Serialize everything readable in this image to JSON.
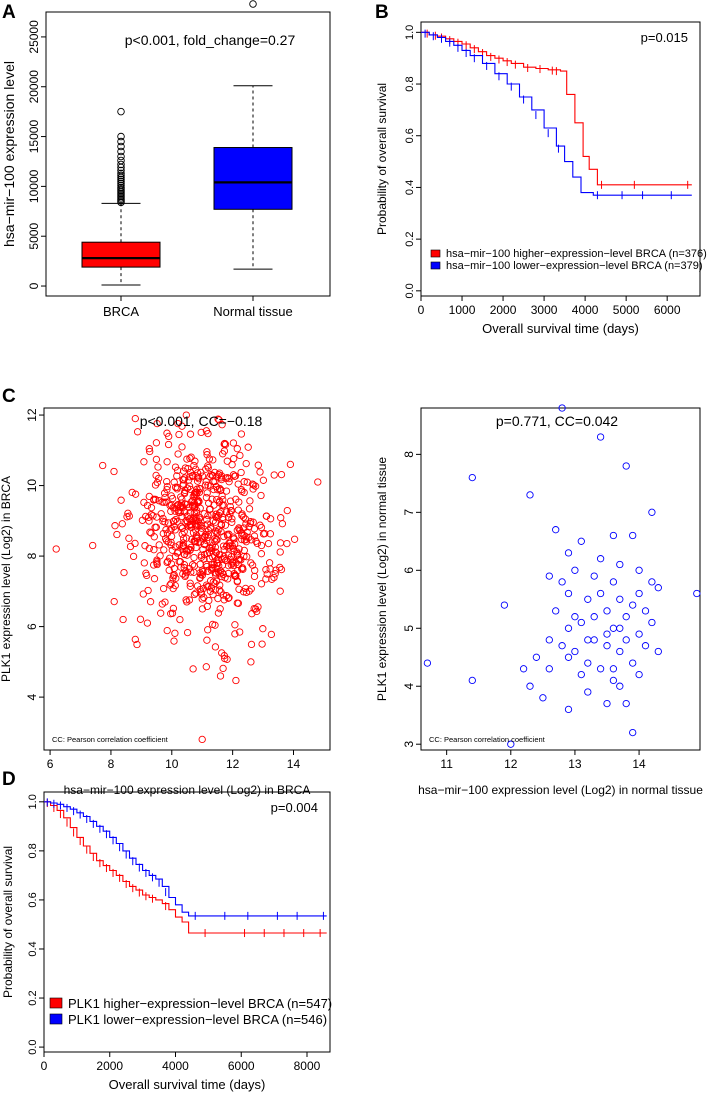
{
  "panels": {
    "A": {
      "letter": "A"
    },
    "B": {
      "letter": "B"
    },
    "C": {
      "letter": "C"
    },
    "D": {
      "letter": "D"
    }
  },
  "chart_data": [
    {
      "id": "A",
      "type": "box",
      "title": "p<0.001, fold_change=0.27",
      "xlabel": "",
      "ylabel": "hsa−mir−100 expression level",
      "categories": [
        "BRCA",
        "Normal tissue"
      ],
      "ylim": [
        -1000,
        27500
      ],
      "yticks": [
        0,
        5000,
        10000,
        15000,
        20000,
        25000
      ],
      "boxes": [
        {
          "name": "BRCA",
          "color": "#ff0000",
          "min": 100,
          "q1": 1900,
          "median": 2800,
          "q3": 4400,
          "whisker_high": 8300,
          "outliers": [
            8400,
            8550,
            8700,
            8850,
            9000,
            9150,
            9300,
            9450,
            9600,
            9750,
            9900,
            10100,
            10300,
            10500,
            10700,
            10900,
            11100,
            11300,
            11600,
            11900,
            12200,
            12600,
            13000,
            13500,
            14000,
            14500,
            15000,
            17500
          ]
        },
        {
          "name": "Normal tissue",
          "color": "#0000ff",
          "min": 1700,
          "q1": 7700,
          "median": 10400,
          "q3": 13900,
          "whisker_high": 20100,
          "outliers": [
            28300
          ]
        }
      ]
    },
    {
      "id": "B",
      "type": "line",
      "subtype": "kaplan-meier",
      "annotation": "p=0.015",
      "xlabel": "Overall survival time (days)",
      "ylabel": "Probability of overall survival",
      "xlim": [
        0,
        6800
      ],
      "ylim": [
        -0.02,
        1.04
      ],
      "xticks": [
        0,
        1000,
        2000,
        3000,
        4000,
        5000,
        6000
      ],
      "yticks": [
        0.0,
        0.2,
        0.4,
        0.6,
        0.8,
        1.0
      ],
      "legend": [
        "hsa−mir−100 higher−expression−level BRCA (n=376)",
        "hsa−mir−100 lower−expression−level BRCA (n=379)"
      ],
      "series": [
        {
          "name": "higher",
          "color": "#ff0000",
          "x": [
            0,
            200,
            400,
            600,
            800,
            1000,
            1200,
            1400,
            1600,
            1800,
            2000,
            2200,
            2500,
            2800,
            3100,
            3400,
            3550,
            3750,
            3950,
            4100,
            4300,
            6600
          ],
          "y": [
            1.0,
            0.99,
            0.985,
            0.975,
            0.965,
            0.955,
            0.94,
            0.925,
            0.91,
            0.9,
            0.89,
            0.88,
            0.865,
            0.86,
            0.855,
            0.85,
            0.76,
            0.65,
            0.52,
            0.47,
            0.41,
            0.41
          ],
          "censor_x": [
            150,
            350,
            500,
            700,
            900,
            1100,
            1300,
            1500,
            1700,
            1900,
            2100,
            2300,
            2600,
            2900,
            3200,
            3300,
            4400,
            5200,
            6500
          ],
          "censor_y": [
            0.995,
            0.987,
            0.98,
            0.97,
            0.96,
            0.95,
            0.935,
            0.92,
            0.905,
            0.895,
            0.885,
            0.875,
            0.862,
            0.858,
            0.852,
            0.85,
            0.41,
            0.41,
            0.41
          ]
        },
        {
          "name": "lower",
          "color": "#0000ff",
          "x": [
            0,
            200,
            400,
            600,
            800,
            1000,
            1200,
            1500,
            1800,
            2100,
            2400,
            2700,
            3000,
            3300,
            3500,
            3700,
            3900,
            4200,
            6600
          ],
          "y": [
            1.0,
            0.99,
            0.98,
            0.965,
            0.95,
            0.93,
            0.91,
            0.88,
            0.84,
            0.8,
            0.75,
            0.7,
            0.63,
            0.56,
            0.5,
            0.44,
            0.38,
            0.37,
            0.37
          ],
          "censor_x": [
            100,
            300,
            500,
            700,
            900,
            1100,
            1300,
            1600,
            1900,
            2200,
            2500,
            2800,
            3100,
            3350,
            4300,
            4900,
            5400,
            6100
          ],
          "censor_y": [
            0.995,
            0.985,
            0.975,
            0.96,
            0.94,
            0.92,
            0.9,
            0.87,
            0.83,
            0.79,
            0.74,
            0.68,
            0.61,
            0.55,
            0.37,
            0.37,
            0.37,
            0.37
          ]
        }
      ]
    },
    {
      "id": "C-left",
      "type": "scatter",
      "title": "p<0.001, CC=−0.18",
      "note": "CC: Pearson correlation coefficient",
      "xlabel": "hsa−mir−100 expression level (Log2) in BRCA",
      "ylabel": "PLK1 expression level (Log2) in BRCA",
      "xlim": [
        5.8,
        15.2
      ],
      "ylim": [
        2.5,
        12.2
      ],
      "xticks": [
        6,
        8,
        10,
        12,
        14
      ],
      "yticks": [
        4,
        6,
        8,
        10,
        12
      ],
      "color": "#ff0000",
      "cloud": {
        "n": 700,
        "x_mean": 11.1,
        "x_sd": 1.15,
        "y_mean": 8.7,
        "y_sd": 1.3,
        "correlation": -0.18
      },
      "points": [
        [
          6.2,
          8.2
        ],
        [
          7.4,
          8.3
        ],
        [
          8.1,
          10.4
        ],
        [
          8.8,
          11.9
        ],
        [
          11.0,
          2.8
        ],
        [
          14.8,
          10.1
        ],
        [
          13.9,
          10.6
        ],
        [
          9.2,
          6.1
        ],
        [
          8.4,
          6.2
        ],
        [
          10.7,
          4.8
        ],
        [
          11.6,
          4.6
        ],
        [
          12.6,
          5.0
        ],
        [
          13.4,
          7.5
        ]
      ]
    },
    {
      "id": "C-right",
      "type": "scatter",
      "title": "p=0.771, CC=0.042",
      "note": "CC: Pearson correlation coefficient",
      "xlabel": "hsa−mir−100 expression level (Log2) in normal tissue",
      "ylabel": "PLK1 expression level (Log2) in normal tissue",
      "xlim": [
        10.6,
        14.95
      ],
      "ylim": [
        2.9,
        8.8
      ],
      "xticks": [
        11,
        12,
        13,
        14
      ],
      "yticks": [
        3,
        4,
        5,
        6,
        7,
        8
      ],
      "color": "#0000ff",
      "points": [
        [
          10.7,
          4.4
        ],
        [
          11.4,
          7.6
        ],
        [
          11.4,
          4.1
        ],
        [
          11.9,
          5.4
        ],
        [
          12.0,
          3.0
        ],
        [
          12.2,
          4.3
        ],
        [
          12.3,
          7.3
        ],
        [
          12.3,
          4.0
        ],
        [
          12.4,
          4.5
        ],
        [
          12.5,
          3.8
        ],
        [
          12.6,
          4.3
        ],
        [
          12.6,
          4.8
        ],
        [
          12.7,
          5.3
        ],
        [
          12.7,
          6.7
        ],
        [
          12.8,
          4.7
        ],
        [
          12.8,
          5.8
        ],
        [
          12.8,
          8.8
        ],
        [
          12.9,
          3.6
        ],
        [
          12.9,
          4.5
        ],
        [
          12.9,
          5.6
        ],
        [
          13.0,
          4.6
        ],
        [
          13.0,
          6.0
        ],
        [
          13.1,
          4.2
        ],
        [
          13.1,
          6.5
        ],
        [
          13.1,
          5.1
        ],
        [
          13.2,
          4.4
        ],
        [
          13.2,
          5.5
        ],
        [
          13.2,
          3.9
        ],
        [
          13.3,
          4.8
        ],
        [
          13.3,
          5.9
        ],
        [
          13.4,
          4.3
        ],
        [
          13.4,
          5.6
        ],
        [
          13.4,
          8.3
        ],
        [
          13.4,
          6.2
        ],
        [
          13.5,
          4.7
        ],
        [
          13.5,
          5.3
        ],
        [
          13.5,
          3.7
        ],
        [
          13.6,
          4.1
        ],
        [
          13.6,
          5.8
        ],
        [
          13.6,
          6.6
        ],
        [
          13.6,
          5.0
        ],
        [
          13.7,
          4.6
        ],
        [
          13.7,
          5.5
        ],
        [
          13.7,
          4.0
        ],
        [
          13.7,
          6.1
        ],
        [
          13.8,
          3.7
        ],
        [
          13.8,
          5.2
        ],
        [
          13.8,
          7.8
        ],
        [
          13.8,
          4.8
        ],
        [
          13.9,
          5.4
        ],
        [
          13.9,
          4.4
        ],
        [
          13.9,
          6.6
        ],
        [
          13.9,
          3.2
        ],
        [
          14.0,
          4.9
        ],
        [
          14.0,
          5.6
        ],
        [
          14.0,
          4.2
        ],
        [
          14.0,
          6.0
        ],
        [
          14.1,
          5.3
        ],
        [
          14.1,
          4.7
        ],
        [
          14.2,
          5.1
        ],
        [
          14.2,
          7.0
        ],
        [
          14.2,
          5.8
        ],
        [
          14.3,
          5.7
        ],
        [
          14.3,
          4.6
        ],
        [
          13.5,
          4.9
        ],
        [
          13.3,
          5.2
        ],
        [
          12.9,
          5.0
        ],
        [
          13.6,
          4.3
        ],
        [
          12.6,
          5.9
        ],
        [
          14.9,
          5.6
        ],
        [
          13.0,
          5.2
        ],
        [
          13.7,
          5.0
        ],
        [
          12.9,
          6.3
        ],
        [
          13.2,
          4.8
        ]
      ]
    },
    {
      "id": "D",
      "type": "line",
      "subtype": "kaplan-meier",
      "annotation": "p=0.004",
      "xlabel": "Overall survival time (days)",
      "ylabel": "Probability of overall survival",
      "xlim": [
        0,
        8700
      ],
      "ylim": [
        -0.02,
        1.04
      ],
      "xticks": [
        0,
        2000,
        4000,
        6000,
        8000
      ],
      "yticks": [
        0.0,
        0.2,
        0.4,
        0.6,
        0.8,
        1.0
      ],
      "legend": [
        "PLK1 higher−expression−level BRCA (n=547)",
        "PLK1 lower−expression−level BRCA (n=546)"
      ],
      "series": [
        {
          "name": "higher",
          "color": "#ff0000",
          "x": [
            0,
            200,
            400,
            600,
            800,
            1000,
            1200,
            1400,
            1600,
            1800,
            2000,
            2200,
            2400,
            2600,
            2800,
            3000,
            3200,
            3400,
            3600,
            3800,
            4000,
            4200,
            4400,
            8600
          ],
          "y": [
            1.0,
            0.985,
            0.965,
            0.935,
            0.895,
            0.855,
            0.82,
            0.79,
            0.76,
            0.74,
            0.72,
            0.7,
            0.675,
            0.655,
            0.64,
            0.62,
            0.61,
            0.6,
            0.585,
            0.56,
            0.53,
            0.51,
            0.465,
            0.465
          ],
          "censor_x": [
            100,
            300,
            500,
            700,
            900,
            1100,
            1300,
            1500,
            1700,
            1900,
            2100,
            2300,
            2500,
            2700,
            2900,
            3100,
            3300,
            3700,
            4900,
            6100,
            6700,
            7300,
            7900,
            8400
          ],
          "censor_y": [
            0.995,
            0.975,
            0.95,
            0.915,
            0.875,
            0.84,
            0.805,
            0.775,
            0.75,
            0.73,
            0.71,
            0.69,
            0.665,
            0.648,
            0.63,
            0.615,
            0.605,
            0.575,
            0.465,
            0.465,
            0.465,
            0.465,
            0.465,
            0.465
          ]
        },
        {
          "name": "lower",
          "color": "#0000ff",
          "x": [
            0,
            200,
            400,
            600,
            800,
            1000,
            1200,
            1400,
            1600,
            1800,
            2000,
            2200,
            2400,
            2600,
            2800,
            3000,
            3200,
            3400,
            3600,
            3800,
            4000,
            4200,
            4400,
            8600
          ],
          "y": [
            1.0,
            0.995,
            0.99,
            0.98,
            0.97,
            0.955,
            0.94,
            0.92,
            0.9,
            0.88,
            0.855,
            0.83,
            0.8,
            0.77,
            0.745,
            0.72,
            0.7,
            0.685,
            0.655,
            0.61,
            0.58,
            0.55,
            0.535,
            0.535
          ],
          "censor_x": [
            100,
            300,
            500,
            700,
            900,
            1100,
            1300,
            1500,
            1700,
            1900,
            2100,
            2300,
            2500,
            2700,
            2900,
            3100,
            3300,
            3500,
            3700,
            4600,
            5500,
            6200,
            7100,
            7700,
            8500
          ],
          "censor_y": [
            0.998,
            0.992,
            0.985,
            0.975,
            0.962,
            0.948,
            0.93,
            0.91,
            0.89,
            0.868,
            0.843,
            0.815,
            0.785,
            0.758,
            0.732,
            0.71,
            0.692,
            0.67,
            0.632,
            0.535,
            0.535,
            0.535,
            0.535,
            0.535,
            0.535
          ]
        }
      ]
    }
  ]
}
